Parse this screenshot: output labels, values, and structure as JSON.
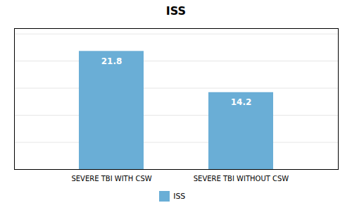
{
  "chart_data": {
    "type": "bar",
    "title": "ISS",
    "categories": [
      "SEVERE TBI WITH CSW",
      "SEVERE TBI WITHOUT CSW"
    ],
    "series": [
      {
        "name": "ISS",
        "color": "#6aaed6",
        "values": [
          21.8,
          14.2
        ]
      }
    ],
    "ylim": [
      0,
      26
    ],
    "yticks": [
      0,
      5,
      10,
      15,
      20,
      25
    ],
    "grid": true,
    "data_labels": true,
    "tick_labels": "x",
    "legend": "bottom"
  }
}
